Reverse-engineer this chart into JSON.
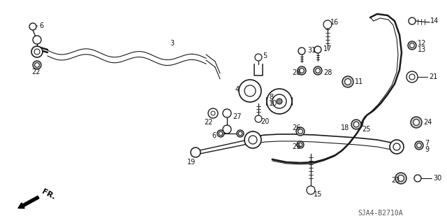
{
  "bg_color": "#ffffff",
  "line_color": "#1a1a1a",
  "label_color": "#111111",
  "fig_width": 6.4,
  "fig_height": 3.19,
  "dpi": 100,
  "diagram_code": "SJA4-B2710A",
  "fr_label": "FR."
}
